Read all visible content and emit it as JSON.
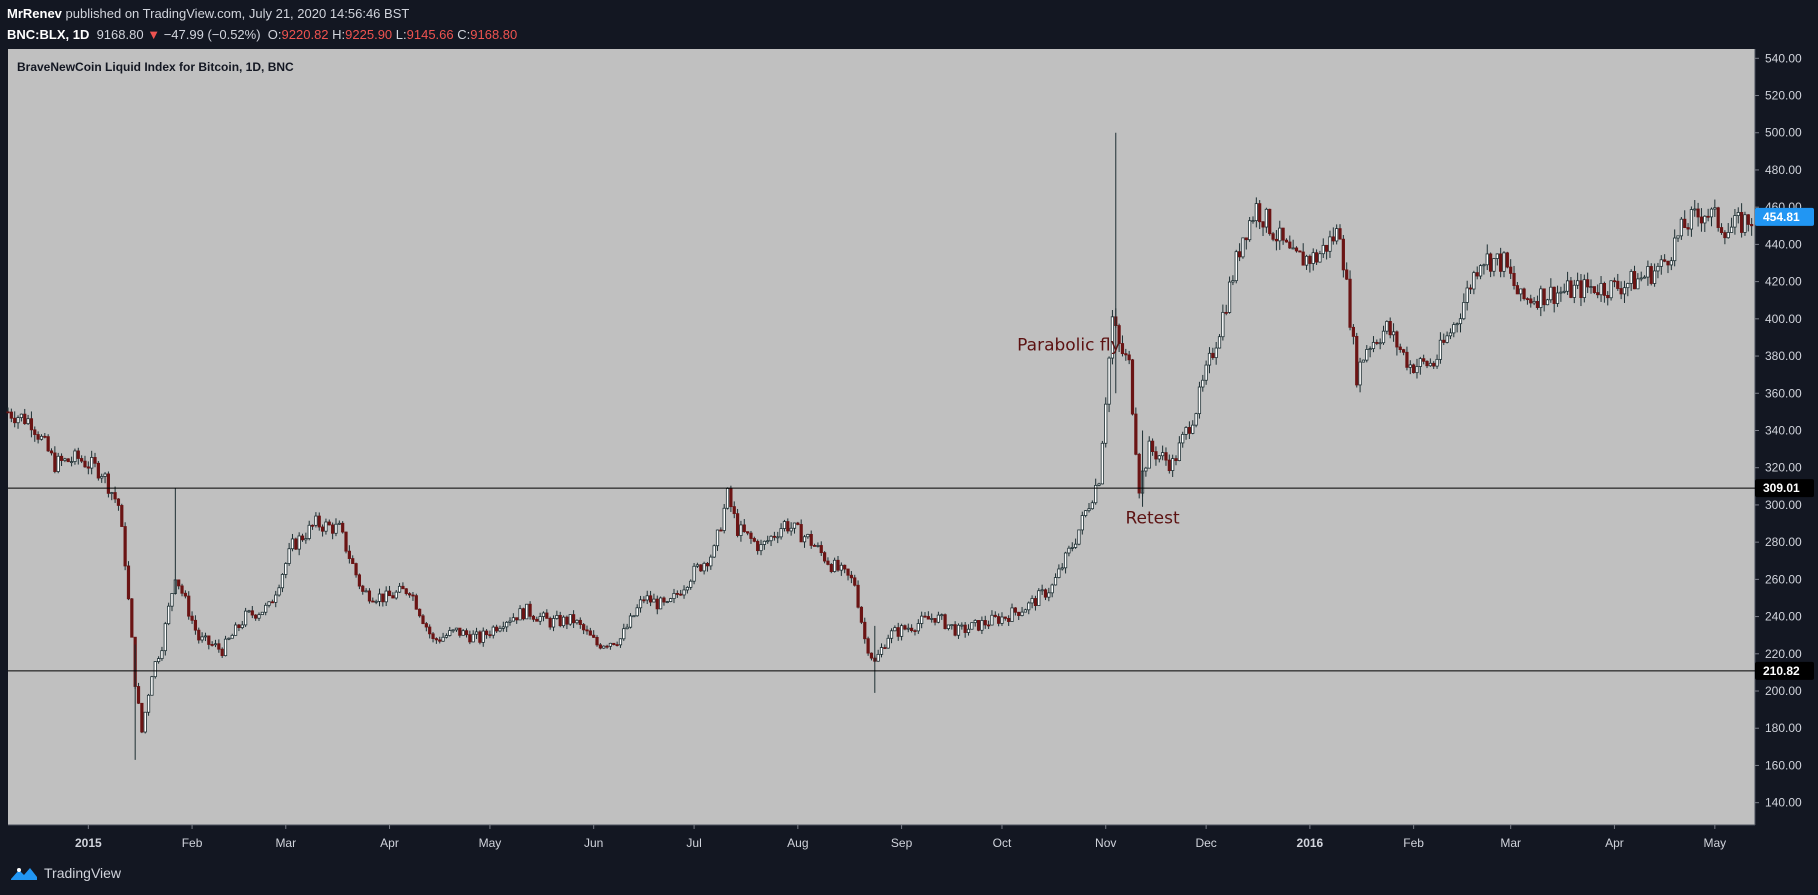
{
  "header": {
    "author": "MrRenev",
    "published_text": "published on TradingView.com, July 21, 2020 14:56:46 BST",
    "symbol": "BNC:BLX, 1D",
    "last": "9168.80",
    "change_arrow": "▼",
    "change": "−47.99 (−0.52%)",
    "o_label": "O:",
    "o_value": "9220.82",
    "h_label": "H:",
    "h_value": "9225.90",
    "l_label": "L:",
    "l_value": "9145.66",
    "c_label": "C:",
    "c_value": "9168.80"
  },
  "footer": {
    "brand": "TradingView"
  },
  "colors": {
    "background": "#c0c0c0",
    "candle": "#1e2f33",
    "down_accent": "#6b1414",
    "price_tag": "#2196f3",
    "annotation": "#5c1212"
  },
  "chart_data": {
    "type": "candlestick",
    "title": "BraveNewCoin Liquid Index for Bitcoin, 1D, BNC",
    "x_ticks": [
      "2015",
      "Feb",
      "Mar",
      "Apr",
      "May",
      "Jun",
      "Jul",
      "Aug",
      "Sep",
      "Oct",
      "Nov",
      "Dec",
      "2016",
      "Feb",
      "Mar",
      "Apr",
      "May"
    ],
    "y_ticks": [
      "540.00",
      "520.00",
      "500.00",
      "480.00",
      "460.00",
      "440.00",
      "420.00",
      "400.00",
      "380.00",
      "360.00",
      "340.00",
      "320.00",
      "300.00",
      "280.00",
      "260.00",
      "240.00",
      "220.00",
      "200.00",
      "180.00",
      "160.00",
      "140.00"
    ],
    "y_range": [
      128,
      545
    ],
    "date_range": [
      "2014-12-08",
      "2016-05-13"
    ],
    "horizontal_levels": [
      {
        "value": 309.01,
        "label": "309.01"
      },
      {
        "value": 210.82,
        "label": "210.82"
      }
    ],
    "current_price": {
      "value": 454.81,
      "label": "454.81"
    },
    "annotations": [
      {
        "text": "Parabolic fly",
        "date": "2015-10-21",
        "price": 383
      },
      {
        "text": "Retest",
        "date": "2015-11-15",
        "price": 290
      }
    ],
    "series_close": [
      [
        "2014-12-08",
        350
      ],
      [
        "2014-12-15",
        345
      ],
      [
        "2014-12-22",
        322
      ],
      [
        "2014-12-29",
        325
      ],
      [
        "2015-01-05",
        318
      ],
      [
        "2015-01-10",
        300
      ],
      [
        "2015-01-12",
        270
      ],
      [
        "2015-01-15",
        205
      ],
      [
        "2015-01-17",
        178
      ],
      [
        "2015-01-20",
        210
      ],
      [
        "2015-01-23",
        225
      ],
      [
        "2015-01-27",
        263
      ],
      [
        "2015-02-03",
        228
      ],
      [
        "2015-02-10",
        222
      ],
      [
        "2015-02-17",
        240
      ],
      [
        "2015-02-24",
        245
      ],
      [
        "2015-03-03",
        278
      ],
      [
        "2015-03-10",
        290
      ],
      [
        "2015-03-17",
        287
      ],
      [
        "2015-03-24",
        253
      ],
      [
        "2015-03-31",
        250
      ],
      [
        "2015-04-07",
        255
      ],
      [
        "2015-04-14",
        227
      ],
      [
        "2015-04-21",
        232
      ],
      [
        "2015-04-28",
        228
      ],
      [
        "2015-05-05",
        238
      ],
      [
        "2015-05-12",
        243
      ],
      [
        "2015-05-19",
        237
      ],
      [
        "2015-05-26",
        238
      ],
      [
        "2015-06-02",
        225
      ],
      [
        "2015-06-09",
        228
      ],
      [
        "2015-06-16",
        250
      ],
      [
        "2015-06-23",
        245
      ],
      [
        "2015-06-30",
        262
      ],
      [
        "2015-07-07",
        275
      ],
      [
        "2015-07-11",
        305
      ],
      [
        "2015-07-14",
        287
      ],
      [
        "2015-07-21",
        277
      ],
      [
        "2015-07-28",
        290
      ],
      [
        "2015-08-04",
        282
      ],
      [
        "2015-08-11",
        268
      ],
      [
        "2015-08-18",
        258
      ],
      [
        "2015-08-21",
        228
      ],
      [
        "2015-08-24",
        215
      ],
      [
        "2015-08-28",
        230
      ],
      [
        "2015-09-04",
        235
      ],
      [
        "2015-09-11",
        240
      ],
      [
        "2015-09-18",
        232
      ],
      [
        "2015-09-25",
        236
      ],
      [
        "2015-10-02",
        240
      ],
      [
        "2015-10-09",
        246
      ],
      [
        "2015-10-16",
        256
      ],
      [
        "2015-10-23",
        282
      ],
      [
        "2015-10-30",
        315
      ],
      [
        "2015-11-03",
        400
      ],
      [
        "2015-11-05",
        385
      ],
      [
        "2015-11-08",
        375
      ],
      [
        "2015-11-11",
        310
      ],
      [
        "2015-11-14",
        330
      ],
      [
        "2015-11-21",
        322
      ],
      [
        "2015-11-28",
        352
      ],
      [
        "2015-12-05",
        395
      ],
      [
        "2015-12-12",
        445
      ],
      [
        "2015-12-16",
        460
      ],
      [
        "2015-12-20",
        450
      ],
      [
        "2015-12-27",
        432
      ],
      [
        "2016-01-03",
        433
      ],
      [
        "2016-01-10",
        448
      ],
      [
        "2016-01-15",
        370
      ],
      [
        "2016-01-18",
        385
      ],
      [
        "2016-01-24",
        395
      ],
      [
        "2016-01-31",
        375
      ],
      [
        "2016-02-07",
        376
      ],
      [
        "2016-02-14",
        400
      ],
      [
        "2016-02-21",
        433
      ],
      [
        "2016-02-28",
        430
      ],
      [
        "2016-03-04",
        410
      ],
      [
        "2016-03-11",
        413
      ],
      [
        "2016-03-18",
        415
      ],
      [
        "2016-03-25",
        417
      ],
      [
        "2016-04-01",
        417
      ],
      [
        "2016-04-08",
        421
      ],
      [
        "2016-04-15",
        428
      ],
      [
        "2016-04-22",
        450
      ],
      [
        "2016-04-28",
        458
      ],
      [
        "2016-05-05",
        448
      ],
      [
        "2016-05-13",
        455
      ]
    ]
  }
}
